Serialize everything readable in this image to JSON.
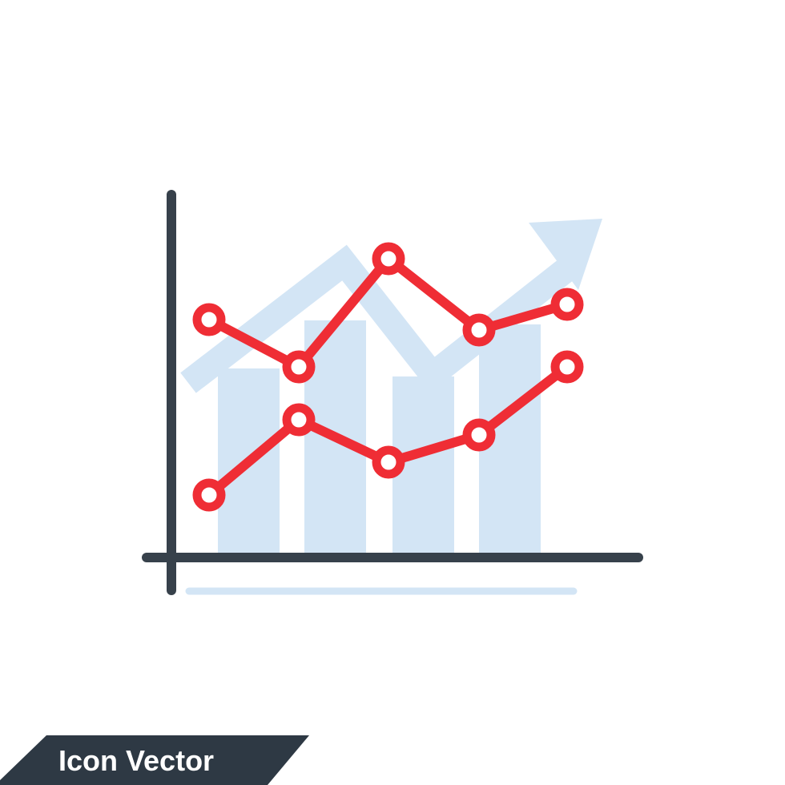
{
  "banner": {
    "label": "Icon Vector"
  },
  "colors": {
    "background": "#ffffff",
    "axis": "#37414b",
    "bars": "#d3e5f5",
    "arrow": "#d3e5f5",
    "baseline": "#d3e5f5",
    "series_line": "#ef2d35",
    "marker_fill": "#ffffff",
    "banner_bg": "#2e3944",
    "banner_text": "#ffffff"
  },
  "icons": {
    "main": "line-chart-icon",
    "trend": "trend-up-arrow-icon"
  }
}
